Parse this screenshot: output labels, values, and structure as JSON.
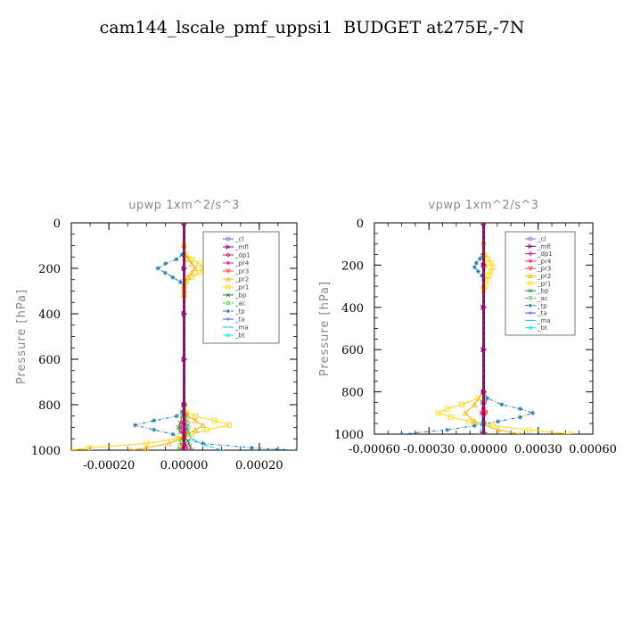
{
  "title": "cam144_lscale_pmf_uppsi1  BUDGET at275E,-7N",
  "colors": {
    "_cl": "#9467bd",
    "_mfl": "#8b008b",
    "_dp1": "#c71585",
    "_pr4": "#ff1493",
    "_pr3": "#ff3b3b",
    "_pr2": "#ffb000",
    "_pr1": "#ffd700",
    "_bp": "#228b22",
    "_ac": "#32cd32",
    "_tp": "#1f77b4",
    "_ta": "#4040ff",
    "_ma": "#00bfff",
    "_bt": "#00e5ff"
  },
  "chart_data": [
    {
      "type": "line",
      "title": "upwp   1xm^2/s^3",
      "ylabel": "Pressure  [hPa]",
      "xlabel": "",
      "xlim": [
        -0.0003,
        0.0003
      ],
      "ylim": [
        1000,
        0
      ],
      "xticks": [
        -0.0002,
        0,
        0.0002
      ],
      "xtick_labels": [
        "-0.00020",
        "0.00000",
        "0.00020"
      ],
      "yticks": [
        0,
        200,
        400,
        600,
        800,
        1000
      ],
      "ytick_labels": [
        "0",
        "200",
        "400",
        "600",
        "800",
        "1000"
      ],
      "legend": [
        "_cl",
        "_mfl",
        "_dp1",
        "_pr4",
        "_pr3",
        "_pr2",
        "_pr1",
        "_bp",
        "_ac",
        "_tp",
        "_ta",
        "_ma",
        "_bt"
      ],
      "legend_placement": "top-right",
      "series": [
        {
          "key": "_tp",
          "y": [
            0,
            100,
            140,
            160,
            180,
            200,
            220,
            240,
            260,
            280,
            300,
            320,
            800,
            830,
            850,
            870,
            890,
            910,
            930,
            950,
            970,
            990,
            1000
          ],
          "x": [
            0,
            0,
            -5e-06,
            -2e-05,
            -5e-05,
            -7e-05,
            -5e-05,
            -3e-05,
            -1e-05,
            0,
            0,
            0,
            0,
            -5e-06,
            -2e-05,
            -8e-05,
            -0.00013,
            -8e-05,
            -3e-05,
            -5e-06,
            5e-05,
            0.00018,
            0.0003
          ]
        },
        {
          "key": "_pr1",
          "y": [
            0,
            100,
            140,
            160,
            180,
            200,
            220,
            240,
            260,
            280,
            300,
            320,
            800,
            830,
            850,
            870,
            890,
            910,
            930,
            950,
            970,
            990,
            1000
          ],
          "x": [
            0,
            0,
            5e-06,
            2e-05,
            4e-05,
            5e-05,
            4e-05,
            2e-05,
            5e-06,
            0,
            0,
            0,
            0,
            5e-06,
            3e-05,
            8e-05,
            0.00012,
            6e-05,
            2e-05,
            -2e-05,
            -0.0001,
            -0.00025,
            -0.0003
          ]
        },
        {
          "key": "_pr2",
          "y": [
            0,
            100,
            140,
            160,
            180,
            200,
            220,
            240,
            260,
            280,
            300,
            320,
            800,
            830,
            850,
            870,
            890,
            910,
            930,
            950,
            970,
            990,
            1000
          ],
          "x": [
            0,
            0,
            3e-06,
            1e-05,
            2e-05,
            3e-05,
            2e-05,
            1e-05,
            3e-06,
            0,
            0,
            0,
            0,
            3e-06,
            1e-05,
            3e-05,
            5e-05,
            3e-05,
            1e-05,
            -1e-05,
            -4e-05,
            -0.0001,
            -0.00014
          ]
        },
        {
          "key": "_bp",
          "y": [
            0,
            800,
            850,
            880,
            900,
            920,
            940,
            960,
            980,
            1000
          ],
          "x": [
            0,
            0,
            -5e-06,
            -1e-05,
            -1.5e-05,
            -1e-05,
            0,
            1e-05,
            1.5e-05,
            2e-05
          ]
        },
        {
          "key": "_ac",
          "y": [
            0,
            800,
            850,
            880,
            900,
            920,
            940,
            960,
            980,
            1000
          ],
          "x": [
            0,
            0,
            3e-06,
            8e-06,
            1e-05,
            8e-06,
            0,
            -5e-06,
            -1e-05,
            -1.5e-05
          ]
        },
        {
          "key": "_pr4",
          "y": [
            0,
            850,
            880,
            900,
            920,
            950,
            980,
            1000
          ],
          "x": [
            0,
            0,
            -5e-06,
            -8e-06,
            -5e-06,
            0,
            5e-06,
            1e-05
          ]
        },
        {
          "key": "_pr3",
          "y": [
            0,
            850,
            880,
            900,
            920,
            950,
            980,
            1000
          ],
          "x": [
            0,
            0,
            4e-06,
            6e-06,
            4e-06,
            0,
            -4e-06,
            -8e-06
          ]
        },
        {
          "key": "_dp1",
          "y": [
            0,
            200,
            400,
            600,
            800,
            1000
          ],
          "x": [
            0,
            0,
            0,
            0,
            0,
            0
          ]
        },
        {
          "key": "_ma",
          "y": [
            0,
            850,
            900,
            950,
            980,
            1000
          ],
          "x": [
            0,
            0,
            5e-06,
            2e-05,
            6e-05,
            0.0001
          ]
        },
        {
          "key": "_mfl",
          "y": [
            0,
            200,
            400,
            600,
            800,
            1000
          ],
          "x": [
            0,
            0,
            0,
            0,
            0,
            0
          ]
        }
      ]
    },
    {
      "type": "line",
      "title": "vpwp   1xm^2/s^3",
      "ylabel": "Pressure  [hPa]",
      "xlabel": "",
      "xlim": [
        -0.0006,
        0.0006
      ],
      "ylim": [
        1000,
        0
      ],
      "xticks": [
        -0.0006,
        -0.0003,
        0,
        0.0003,
        0.0006
      ],
      "xtick_labels": [
        "-0.00060",
        "-0.00030",
        "0.00000",
        "0.00030",
        "0.00060"
      ],
      "yticks": [
        0,
        200,
        400,
        600,
        800,
        1000
      ],
      "ytick_labels": [
        "0",
        "200",
        "400",
        "600",
        "800",
        "1000"
      ],
      "legend": [
        "_cl",
        "_mfl",
        "_dp1",
        "_pr4",
        "_pr3",
        "_pr2",
        "_pr1",
        "_bp",
        "_ac",
        "_tp",
        "_ta",
        "_ma",
        "_bt"
      ],
      "legend_placement": "top-right",
      "series": [
        {
          "key": "_tp",
          "y": [
            0,
            100,
            150,
            170,
            190,
            210,
            230,
            250,
            270,
            300,
            800,
            830,
            860,
            880,
            900,
            920,
            940,
            960,
            980,
            1000
          ],
          "x": [
            0,
            0,
            -5e-06,
            -2e-05,
            -4e-05,
            -5e-05,
            -3e-05,
            -1e-05,
            0,
            0,
            0,
            2e-05,
            0.0001,
            0.0002,
            0.00027,
            0.0002,
            8e-05,
            -5e-05,
            -0.0002,
            -0.00045
          ]
        },
        {
          "key": "_pr1",
          "y": [
            0,
            100,
            150,
            170,
            190,
            210,
            230,
            250,
            270,
            300,
            320,
            800,
            830,
            860,
            880,
            900,
            920,
            940,
            960,
            980,
            1000
          ],
          "x": [
            0,
            0,
            5e-06,
            2e-05,
            4e-05,
            5e-05,
            4e-05,
            3e-05,
            2e-05,
            1e-05,
            0,
            0,
            -3e-05,
            -0.00012,
            -0.0002,
            -0.00025,
            -0.00018,
            -8e-05,
            5e-05,
            0.00025,
            0.00048
          ]
        },
        {
          "key": "_pr2",
          "y": [
            0,
            150,
            200,
            250,
            300,
            800,
            860,
            900,
            940,
            980,
            1000
          ],
          "x": [
            0,
            5e-06,
            1e-05,
            5e-06,
            0,
            0,
            -5e-05,
            -0.0001,
            -5e-05,
            8e-05,
            0.0002
          ]
        },
        {
          "key": "_bp",
          "y": [
            0,
            850,
            900,
            950,
            1000
          ],
          "x": [
            0,
            -5e-06,
            -1e-05,
            0,
            1e-05
          ]
        },
        {
          "key": "_ac",
          "y": [
            0,
            850,
            900,
            950,
            1000
          ],
          "x": [
            0,
            4e-06,
            8e-06,
            0,
            -8e-06
          ]
        },
        {
          "key": "_pr4",
          "y": [
            0,
            850,
            900,
            950,
            1000
          ],
          "x": [
            0,
            -5e-06,
            -1e-05,
            0,
            5e-06
          ]
        },
        {
          "key": "_pr3",
          "y": [
            0,
            850,
            900,
            950,
            1000
          ],
          "x": [
            0,
            5e-06,
            1e-05,
            0,
            -5e-06
          ]
        },
        {
          "key": "_dp1",
          "y": [
            0,
            200,
            400,
            600,
            800,
            1000
          ],
          "x": [
            0,
            0,
            0,
            0,
            0,
            0
          ]
        },
        {
          "key": "_ma",
          "y": [
            0,
            850,
            900,
            950,
            1000
          ],
          "x": [
            0,
            0,
            -5e-06,
            -1e-05,
            -2e-05
          ]
        },
        {
          "key": "_mfl",
          "y": [
            0,
            200,
            400,
            600,
            800,
            1000
          ],
          "x": [
            0,
            0,
            0,
            0,
            0,
            0
          ]
        }
      ]
    }
  ]
}
